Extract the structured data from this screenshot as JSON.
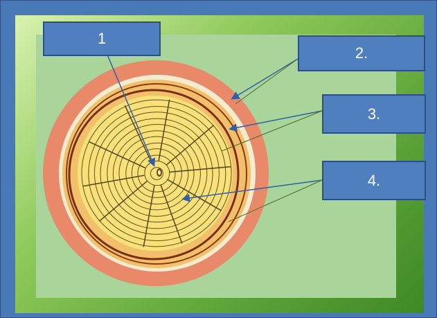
{
  "labels": {
    "box1": "1",
    "box2": "2.",
    "box3": "3.",
    "box4": "4."
  },
  "colors": {
    "frame_blue": "#4a79b8",
    "background_green": "#5ea53a",
    "card_green": "#a9d49a",
    "bark_outer": "#e88a6a",
    "cambium_light": "#f5ecd0",
    "phloem_orange": "#f2c06a",
    "wood_yellow": "#f7e27a",
    "core_yellow": "#fff3a8",
    "ring_lines": "#6b4a1a",
    "dark_ring": "#7a2e14",
    "arrow_blue": "#2f5fa8"
  }
}
